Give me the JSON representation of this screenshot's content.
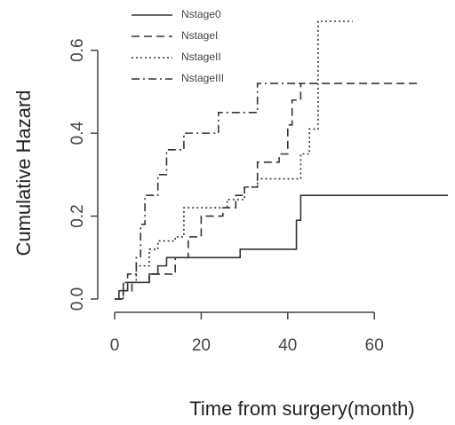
{
  "chart_data": {
    "type": "step-line",
    "x_label": "Time from surgery(month)",
    "y_label": "Cumulative Hazard",
    "xlim": [
      0,
      77
    ],
    "ylim": [
      0,
      0.67
    ],
    "xticks": [
      0,
      20,
      40,
      60
    ],
    "yticks": [
      {
        "value": 0,
        "label": "0.0"
      },
      0.2,
      0.4,
      0.6
    ],
    "legend": "top-left",
    "series": [
      {
        "name": "Nstage0",
        "color": "#333333",
        "linestyle": "solid",
        "x": [
          0,
          1,
          3,
          8,
          10,
          12,
          29,
          42,
          43,
          77
        ],
        "values": [
          0,
          0.02,
          0.04,
          0.06,
          0.08,
          0.1,
          0.12,
          0.19,
          0.25,
          0.25
        ]
      },
      {
        "name": "NstageI",
        "color": "#333333",
        "linestyle": "dashed",
        "x": [
          0,
          2,
          4,
          8,
          14,
          17,
          20,
          25,
          28,
          30,
          33,
          38,
          40,
          41,
          43,
          70
        ],
        "values": [
          0,
          0.02,
          0.04,
          0.06,
          0.1,
          0.15,
          0.2,
          0.22,
          0.25,
          0.27,
          0.33,
          0.35,
          0.42,
          0.48,
          0.52,
          0.52
        ]
      },
      {
        "name": "NstageII",
        "color": "#333333",
        "linestyle": "dotted",
        "x": [
          0,
          2,
          5,
          8,
          10,
          14,
          16,
          26,
          30,
          33,
          43,
          45,
          47,
          55
        ],
        "values": [
          0,
          0.04,
          0.08,
          0.12,
          0.14,
          0.15,
          0.22,
          0.24,
          0.27,
          0.29,
          0.35,
          0.41,
          0.67,
          0.67
        ]
      },
      {
        "name": "NstageIII",
        "color": "#333333",
        "linestyle": "dashdot",
        "x": [
          0,
          2,
          3,
          5,
          6,
          7,
          10,
          12,
          16,
          24,
          33,
          44
        ],
        "values": [
          0,
          0.04,
          0.06,
          0.1,
          0.18,
          0.25,
          0.3,
          0.36,
          0.4,
          0.45,
          0.52,
          0.52
        ]
      }
    ]
  }
}
